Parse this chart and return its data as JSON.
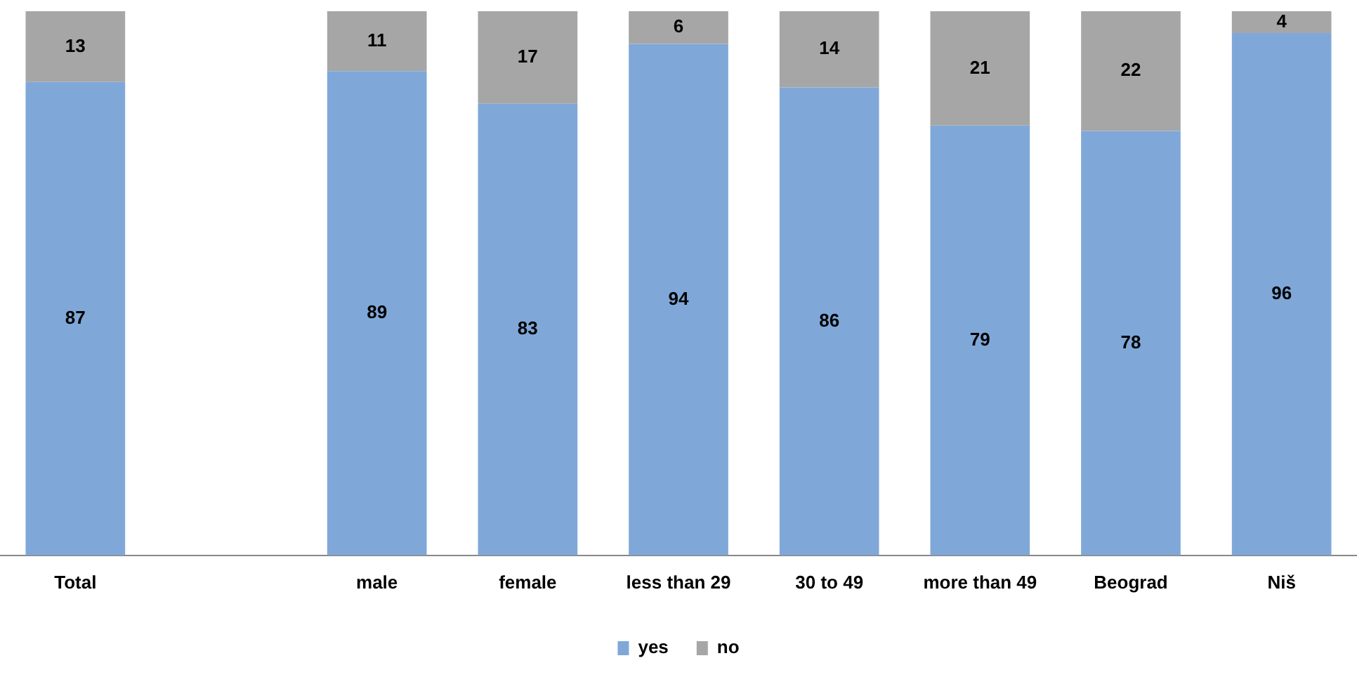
{
  "chart_data": {
    "type": "bar",
    "stacked": true,
    "categories": [
      "Total",
      null,
      "male",
      "female",
      "less than 29",
      "30 to 49",
      "more than 49",
      "Beograd",
      "Niš"
    ],
    "series": [
      {
        "name": "yes",
        "color": "#7fa8d8",
        "values": [
          87,
          null,
          89,
          83,
          94,
          86,
          79,
          78,
          96
        ]
      },
      {
        "name": "no",
        "color": "#a6a6a6",
        "values": [
          13,
          null,
          11,
          17,
          6,
          14,
          21,
          22,
          4
        ]
      }
    ],
    "ylim": [
      0,
      100
    ],
    "tick_labels": "x",
    "grid": false,
    "legend": "bottom",
    "data_labels": true
  }
}
